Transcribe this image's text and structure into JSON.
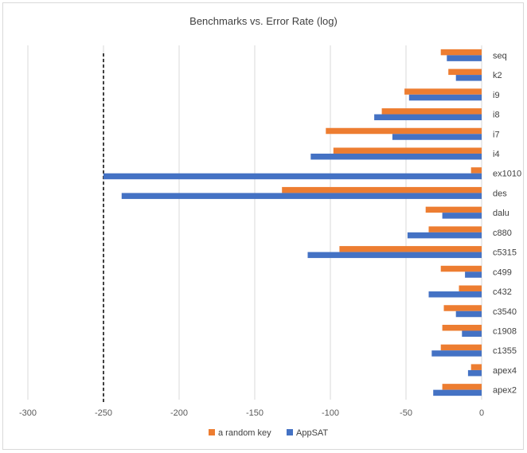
{
  "chart_data": {
    "type": "bar",
    "orientation": "horizontal",
    "title": "Benchmarks vs. Error Rate (log)",
    "xlabel": "",
    "ylabel": "",
    "xlim": [
      -300,
      0
    ],
    "xticks": [
      -300,
      -250,
      -200,
      -150,
      -100,
      -50,
      0
    ],
    "grid": true,
    "legend": "bottom",
    "reference_line": {
      "x": -250,
      "style": "dashed",
      "color": "#000000"
    },
    "categories": [
      "seq",
      "k2",
      "i9",
      "i8",
      "i7",
      "i4",
      "ex1010",
      "des",
      "dalu",
      "c880",
      "c5315",
      "c499",
      "c432",
      "c3540",
      "c1908",
      "c1355",
      "apex4",
      "apex2"
    ],
    "series": [
      {
        "name": "a random key",
        "color": "#ED7D31",
        "values": [
          -27,
          -22,
          -51,
          -66,
          -103,
          -98,
          -7,
          -132,
          -37,
          -35,
          -94,
          -27,
          -15,
          -25,
          -26,
          -27,
          -7,
          -26
        ]
      },
      {
        "name": "AppSAT",
        "color": "#4472C4",
        "values": [
          -23,
          -17,
          -48,
          -71,
          -59,
          -113,
          -250,
          -238,
          -26,
          -49,
          -115,
          -11,
          -35,
          -17,
          -13,
          -33,
          -9,
          -32
        ]
      }
    ]
  }
}
